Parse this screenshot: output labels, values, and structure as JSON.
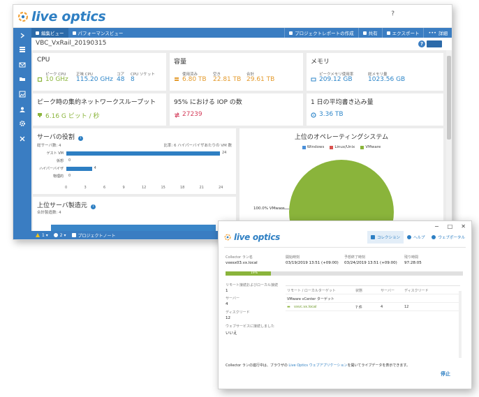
{
  "main": {
    "logo": "live optics",
    "help_label": "?",
    "tabs": [
      {
        "label": "編集ビュー"
      },
      {
        "label": "パフォーマンスビュー"
      }
    ],
    "actions": [
      {
        "label": "プロジェクトレポートの作成"
      },
      {
        "label": "共有"
      },
      {
        "label": "エクスポート"
      },
      {
        "label": "詳細"
      }
    ],
    "project_name": "VBC_VxRail_20190315",
    "cpu": {
      "title": "CPU",
      "stats": [
        {
          "label": "ピーク CPU",
          "value": "10 GHz"
        },
        {
          "label": "正味 CPU",
          "value": "115.20 GHz"
        },
        {
          "label": "コア",
          "value": "48"
        },
        {
          "label": "CPU ソケット",
          "value": "8"
        }
      ]
    },
    "capacity": {
      "title": "容量",
      "stats": [
        {
          "label": "使用済み",
          "value": "6.80 TB"
        },
        {
          "label": "空き",
          "value": "22.81 TB"
        },
        {
          "label": "合計",
          "value": "29.61 TB"
        }
      ]
    },
    "memory": {
      "title": "メモリ",
      "stats": [
        {
          "label": "ピークメモリ使用率",
          "value": "209.12 GB"
        },
        {
          "label": "総メモリ量",
          "value": "1023.56 GB"
        }
      ]
    },
    "throughput": {
      "title": "ピーク時の集約ネットワークスループット",
      "value": "6.16 G ビット / 秒"
    },
    "iops": {
      "title": "95% における IOP の数",
      "value": "27239"
    },
    "writes": {
      "title": "1 日の平均書き込み量",
      "value": "3.36 TB"
    },
    "server_roles": {
      "title": "サーバの役割",
      "total_label": "総サーバ数: 4",
      "ratio_label": "比率: 6 ハイパーバイザあたりの VM 数"
    },
    "top_os": {
      "title": "上位のオペレーティングシステム",
      "legend": [
        {
          "name": "Windows",
          "color": "#4a90d9"
        },
        {
          "name": "Linux/Unix",
          "color": "#d9534f"
        },
        {
          "name": "VMware",
          "color": "#8ab43b"
        }
      ],
      "slice_label": "100.0% VMware"
    },
    "manufacturers": {
      "title": "上位サーバ製造元",
      "total_label": "合計製造数: 4"
    },
    "status": {
      "warnings": "1",
      "info": "2",
      "notes": "プロジェクトノート"
    }
  },
  "chart_data": {
    "type": "bar",
    "orientation": "horizontal",
    "title": "サーバの役割",
    "categories": [
      "ゲスト VM",
      "仮想",
      "ハイパーバイザ",
      "物理的"
    ],
    "values": [
      24,
      0,
      4,
      0
    ],
    "xlim": [
      0,
      24
    ],
    "ticks": [
      0,
      3,
      6,
      9,
      12,
      15,
      18,
      21,
      24
    ],
    "color": "#2e7fc3"
  },
  "collector": {
    "logo": "live optics",
    "win_controls": [
      "−",
      "□",
      "✕"
    ],
    "nav": [
      {
        "label": "コレクション"
      },
      {
        "label": "ヘルプ"
      },
      {
        "label": "ウェブポータル"
      }
    ],
    "run_name_label": "Collector ラン名",
    "run_name": "vxesx03.vx.local",
    "start_label": "開始時刻",
    "start": "03/19/2019 13:51 (+09:00)",
    "end_label": "予想終了時刻",
    "end": "03/24/2019 13:51 (+09:00)",
    "remaining_label": "残り時間",
    "remaining": "97:28:05",
    "progress_percent": 19,
    "progress_label": "19%",
    "left_fields": [
      {
        "label": "リモート接続およびローカル接続",
        "value": "1"
      },
      {
        "label": "サーバー",
        "value": "4"
      },
      {
        "label": "ディスクリード",
        "value": "12"
      },
      {
        "label": "ウェブサービスに接続しました",
        "value": "いいえ"
      }
    ],
    "target_headers": [
      "リモート / ローカルターゲット",
      "状態",
      "サーバー",
      "ディスクリード"
    ],
    "target_group": "VMware vCenter ターゲット",
    "target": {
      "name": "vxvc.vx.local",
      "state": "7 件",
      "servers": "4",
      "disks": "12"
    },
    "footer_prefix": "Collector ランの進行中は、ブラウザの ",
    "footer_link": "Live Optics ウェブアプリケーション",
    "footer_suffix": "を開いてライブデータを表示できます。",
    "stop_label": "停止"
  }
}
